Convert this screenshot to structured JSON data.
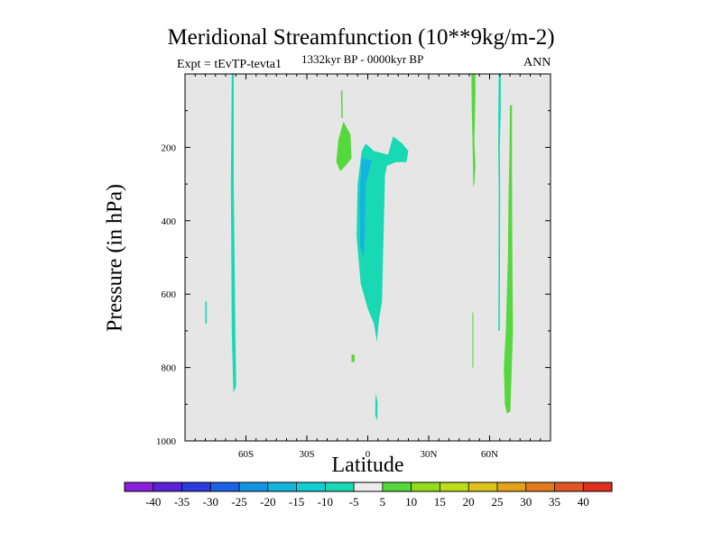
{
  "chart_data": {
    "type": "heatmap",
    "title": "Meridional Streamfunction (10**9kg/m-2)",
    "left_string": "Expt = tEvTP-tevta1",
    "center_string": "1332kyr BP - 0000kyr BP",
    "right_string": "ANN",
    "xlabel": "Latitude",
    "ylabel": "Pressure (in hPa)",
    "xlim": [
      -90,
      90
    ],
    "ylim": [
      1000,
      0
    ],
    "x_ticks": [
      {
        "value": -60,
        "label": "60S"
      },
      {
        "value": -30,
        "label": "30S"
      },
      {
        "value": 0,
        "label": "0"
      },
      {
        "value": 30,
        "label": "30N"
      },
      {
        "value": 60,
        "label": "60N"
      }
    ],
    "y_ticks": [
      {
        "value": 200,
        "label": "200"
      },
      {
        "value": 400,
        "label": "400"
      },
      {
        "value": 600,
        "label": "600"
      },
      {
        "value": 800,
        "label": "800"
      },
      {
        "value": 1000,
        "label": "1000"
      }
    ],
    "missing_color": "#e6e6e6",
    "colorbar": {
      "levels": [
        -40,
        -35,
        -30,
        -25,
        -20,
        -15,
        -10,
        -5,
        5,
        10,
        15,
        20,
        25,
        30,
        35,
        40
      ],
      "labels": [
        "-40",
        "-35",
        "-30",
        "-25",
        "-20",
        "-15",
        "-10",
        "-5",
        "5",
        "10",
        "15",
        "20",
        "25",
        "30",
        "35",
        "40"
      ],
      "colors": [
        "#8a1fdc",
        "#5a22d8",
        "#2b3bdd",
        "#1b62e4",
        "#1492e4",
        "#14b4df",
        "#12cdd3",
        "#19d8b4",
        "#ececec",
        "#55d83b",
        "#94dc1a",
        "#bcdc17",
        "#dbc417",
        "#e4a11b",
        "#e27a1d",
        "#e05522",
        "#dd2e20"
      ]
    },
    "regions": [
      {
        "name": "southern-mid-column",
        "color": "#19d8b4",
        "points": [
          [
            -67.0,
            0
          ],
          [
            -66.0,
            0
          ],
          [
            -66.0,
            300
          ],
          [
            -65.2,
            700
          ],
          [
            -64.8,
            850
          ],
          [
            -66.2,
            870
          ],
          [
            -67.0,
            700
          ],
          [
            -67.4,
            300
          ]
        ]
      },
      {
        "name": "southern-isolated-patch",
        "color": "#19d8b4",
        "points": [
          [
            -80.0,
            620
          ],
          [
            -79.3,
            620
          ],
          [
            -79.3,
            680
          ],
          [
            -80.0,
            680
          ]
        ]
      },
      {
        "name": "upper-tropical-positive-thin",
        "color": "#55d83b",
        "points": [
          [
            -13.2,
            45
          ],
          [
            -12.5,
            45
          ],
          [
            -12.3,
            120
          ],
          [
            -13.0,
            120
          ]
        ]
      },
      {
        "name": "upper-tropical-positive",
        "color": "#55d83b",
        "points": [
          [
            -14.5,
            180
          ],
          [
            -12.0,
            130
          ],
          [
            -8.5,
            165
          ],
          [
            -8.0,
            230
          ],
          [
            -11.0,
            250
          ],
          [
            -13.5,
            265
          ],
          [
            -15.5,
            240
          ]
        ]
      },
      {
        "name": "equatorial-negative-cell",
        "color": "#19d8b4",
        "points": [
          [
            -3.0,
            210
          ],
          [
            -1.0,
            190
          ],
          [
            3.0,
            210
          ],
          [
            10.0,
            220
          ],
          [
            12.5,
            170
          ],
          [
            17.0,
            190
          ],
          [
            20.0,
            210
          ],
          [
            19.0,
            240
          ],
          [
            14.0,
            240
          ],
          [
            9.5,
            250
          ],
          [
            8.5,
            275
          ],
          [
            7.5,
            500
          ],
          [
            7.0,
            620
          ],
          [
            5.5,
            670
          ],
          [
            4.5,
            730
          ],
          [
            3.0,
            680
          ],
          [
            0.0,
            640
          ],
          [
            -3.5,
            570
          ],
          [
            -5.5,
            440
          ],
          [
            -5.0,
            300
          ]
        ]
      },
      {
        "name": "equatorial-inner-contour",
        "color": "#14b4df",
        "points": [
          [
            -3.0,
            230
          ],
          [
            2.0,
            235
          ],
          [
            -1.0,
            300
          ],
          [
            -1.5,
            430
          ],
          [
            -2.0,
            500
          ],
          [
            -3.8,
            470
          ],
          [
            -4.0,
            330
          ]
        ]
      },
      {
        "name": "near-surface-small",
        "color": "#19d8b4",
        "points": [
          [
            4.0,
            870
          ],
          [
            4.8,
            895
          ],
          [
            4.7,
            945
          ],
          [
            3.7,
            930
          ],
          [
            3.8,
            890
          ]
        ]
      },
      {
        "name": "low-level-speck",
        "color": "#55d83b",
        "points": [
          [
            -8.0,
            765
          ],
          [
            -6.5,
            765
          ],
          [
            -6.5,
            785
          ],
          [
            -8.0,
            785
          ]
        ]
      },
      {
        "name": "nh-midlat-column",
        "color": "#55d83b",
        "points": [
          [
            51.0,
            0
          ],
          [
            53.0,
            0
          ],
          [
            53.0,
            60
          ],
          [
            52.5,
            180
          ],
          [
            53.0,
            250
          ],
          [
            52.5,
            300
          ],
          [
            52.0,
            310
          ],
          [
            51.8,
            240
          ],
          [
            51.5,
            170
          ],
          [
            51.2,
            90
          ]
        ]
      },
      {
        "name": "nh-midlat-lower",
        "color": "#55d83b",
        "points": [
          [
            51.5,
            650
          ],
          [
            52.0,
            650
          ],
          [
            52.0,
            800
          ],
          [
            51.5,
            800
          ]
        ]
      },
      {
        "name": "nh-thin-negative",
        "color": "#19d8b4",
        "points": [
          [
            64.5,
            0
          ],
          [
            65.5,
            0
          ],
          [
            65.5,
            100
          ],
          [
            65.0,
            200
          ],
          [
            65.2,
            300
          ],
          [
            65.0,
            700
          ],
          [
            64.3,
            700
          ],
          [
            64.5,
            300
          ],
          [
            64.2,
            200
          ],
          [
            64.3,
            100
          ]
        ]
      },
      {
        "name": "nh-high-lat-column",
        "color": "#55d83b",
        "points": [
          [
            70.0,
            85
          ],
          [
            71.0,
            85
          ],
          [
            71.0,
            250
          ],
          [
            71.2,
            500
          ],
          [
            71.5,
            700
          ],
          [
            70.2,
            920
          ],
          [
            68.5,
            925
          ],
          [
            67.5,
            900
          ],
          [
            67.0,
            800
          ],
          [
            68.0,
            700
          ],
          [
            68.5,
            600
          ],
          [
            69.0,
            500
          ],
          [
            69.3,
            350
          ],
          [
            69.8,
            200
          ]
        ]
      }
    ]
  }
}
